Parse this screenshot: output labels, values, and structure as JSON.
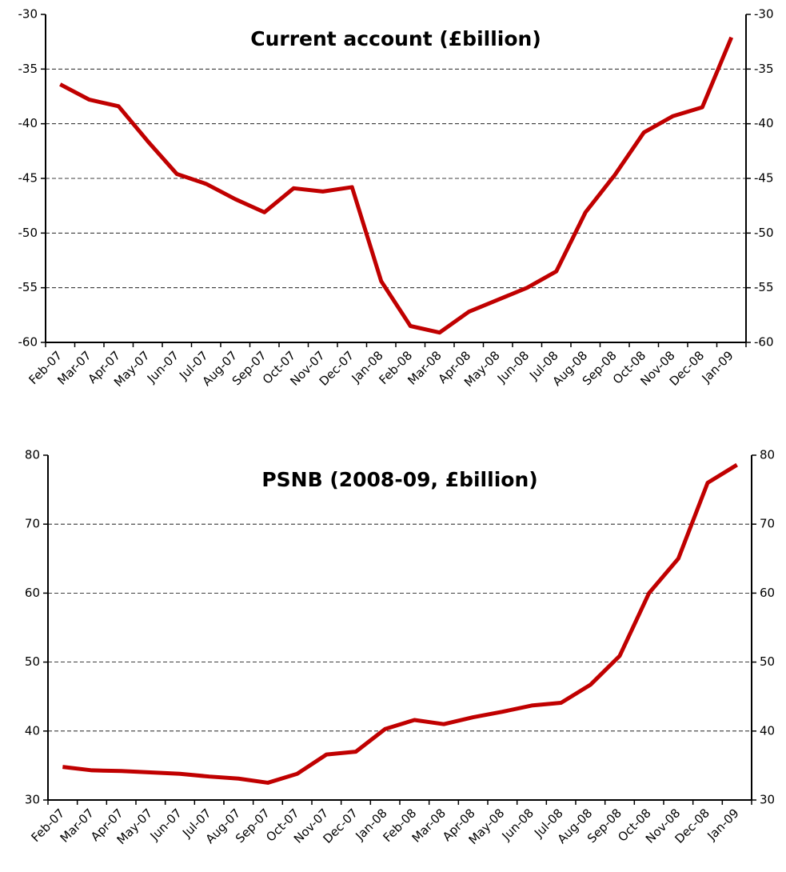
{
  "chart_data": [
    {
      "type": "line",
      "title": "Current account (£billion)",
      "categories": [
        "Feb-07",
        "Mar-07",
        "Apr-07",
        "May-07",
        "Jun-07",
        "Jul-07",
        "Aug-07",
        "Sep-07",
        "Oct-07",
        "Nov-07",
        "Dec-07",
        "Jan-08",
        "Feb-08",
        "Mar-08",
        "Apr-08",
        "May-08",
        "Jun-08",
        "Jul-08",
        "Aug-08",
        "Sep-08",
        "Oct-08",
        "Nov-08",
        "Dec-08",
        "Jan-09"
      ],
      "values": [
        -36.4,
        -37.8,
        -38.4,
        -41.6,
        -44.6,
        -45.5,
        -46.9,
        -48.1,
        -45.9,
        -46.2,
        -45.8,
        -54.4,
        -58.5,
        -59.1,
        -57.2,
        -56.1,
        -55.0,
        -53.5,
        -48.1,
        -44.7,
        -40.8,
        -39.3,
        -38.5,
        -32.1
      ],
      "color": "#c00000",
      "ylim": [
        -60,
        -30
      ],
      "yticks": [
        -60,
        -55,
        -50,
        -45,
        -40,
        -35,
        -30
      ],
      "grid": true
    },
    {
      "type": "line",
      "title": "PSNB (2008-09, £billion)",
      "categories": [
        "Feb-07",
        "Mar-07",
        "Apr-07",
        "May-07",
        "Jun-07",
        "Jul-07",
        "Aug-07",
        "Sep-07",
        "Oct-07",
        "Nov-07",
        "Dec-07",
        "Jan-08",
        "Feb-08",
        "Mar-08",
        "Apr-08",
        "May-08",
        "Jun-08",
        "Jul-08",
        "Aug-08",
        "Sep-08",
        "Oct-08",
        "Nov-08",
        "Dec-08",
        "Jan-09"
      ],
      "values": [
        34.8,
        34.3,
        34.2,
        34.0,
        33.8,
        33.4,
        33.1,
        32.5,
        33.8,
        36.6,
        37.0,
        40.3,
        41.6,
        41.0,
        42.0,
        42.8,
        43.7,
        44.1,
        46.7,
        50.9,
        60.0,
        65.0,
        76.0,
        78.6
      ],
      "color": "#c00000",
      "ylim": [
        30,
        80
      ],
      "yticks": [
        30,
        40,
        50,
        60,
        70,
        80
      ],
      "grid": true
    }
  ]
}
